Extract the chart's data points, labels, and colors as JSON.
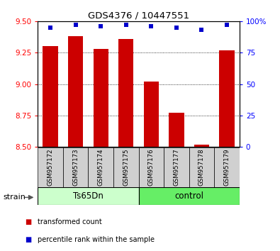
{
  "title": "GDS4376 / 10447551",
  "samples": [
    "GSM957172",
    "GSM957173",
    "GSM957174",
    "GSM957175",
    "GSM957176",
    "GSM957177",
    "GSM957178",
    "GSM957179"
  ],
  "bar_values": [
    9.3,
    9.38,
    9.28,
    9.36,
    9.02,
    8.77,
    8.52,
    9.27
  ],
  "percentile_values": [
    95,
    97,
    96,
    97,
    96,
    95,
    93,
    97
  ],
  "bar_color": "#cc0000",
  "percentile_color": "#0000cc",
  "ylim_left": [
    8.5,
    9.5
  ],
  "ylim_right": [
    0,
    100
  ],
  "yticks_left": [
    8.5,
    8.75,
    9.0,
    9.25,
    9.5
  ],
  "yticks_right": [
    0,
    25,
    50,
    75,
    100
  ],
  "bar_width": 0.6,
  "group1_label": "Ts65Dn",
  "group2_label": "control",
  "group1_indices": [
    0,
    1,
    2,
    3
  ],
  "group2_indices": [
    4,
    5,
    6,
    7
  ],
  "group1_color": "#ccffcc",
  "group2_color": "#66ee66",
  "strain_label": "strain",
  "legend_bar_label": "transformed count",
  "legend_pct_label": "percentile rank within the sample",
  "plot_bg": "#ffffff"
}
